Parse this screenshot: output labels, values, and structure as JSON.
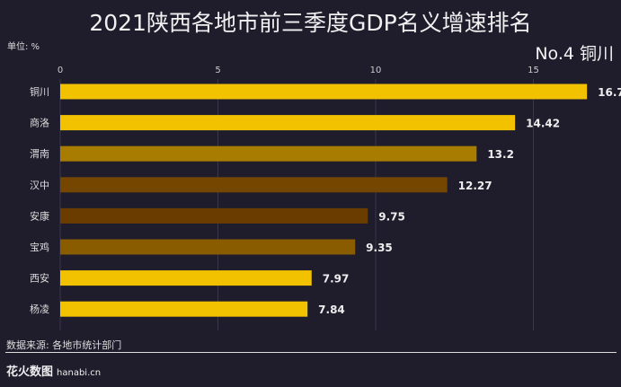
{
  "chart_data": {
    "type": "bar",
    "orientation": "horizontal",
    "title": "2021陕西各地市前三季度GDP名义增速排名",
    "unit_label": "单位: %",
    "highlight": "No.4 铜川",
    "categories": [
      "铜川",
      "商洛",
      "渭南",
      "汉中",
      "安康",
      "宝鸡",
      "西安",
      "杨凌"
    ],
    "values": [
      16.7,
      14.42,
      13.2,
      12.27,
      9.75,
      9.35,
      7.97,
      7.84
    ],
    "value_labels": [
      "16.7",
      "14.42",
      "13.2",
      "12.27",
      "9.75",
      "9.35",
      "7.97",
      "7.84"
    ],
    "colors": [
      "#f2c200",
      "#f2c200",
      "#a87c00",
      "#744600",
      "#6a3c00",
      "#8a5c00",
      "#f2c200",
      "#f2c200"
    ],
    "xticks": [
      0,
      5,
      10,
      15
    ],
    "xlim": [
      0,
      17.5
    ],
    "grid": true,
    "source": "数据来源: 各地市统计部门"
  },
  "brand": {
    "name": "花火数图",
    "site": "hanabi.cn"
  }
}
